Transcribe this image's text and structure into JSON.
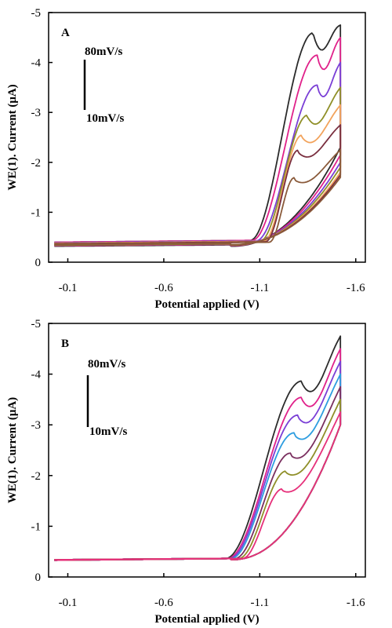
{
  "chart_data": [
    {
      "type": "line",
      "panel_label": "A",
      "xlabel": "Potential applied (V)",
      "ylabel": "WE(1). Current (μA)",
      "xlim": [
        0.0,
        -1.65
      ],
      "ylim": [
        0,
        -5
      ],
      "x_ticks": [
        -0.1,
        -0.6,
        -1.1,
        -1.6
      ],
      "x_tick_labels": [
        "-0.1",
        "-0.6",
        "-1.1",
        "-1.6"
      ],
      "y_ticks": [
        0,
        -1,
        -2,
        -3,
        -4,
        -5
      ],
      "y_tick_labels": [
        "0",
        "-1",
        "-2",
        "-3",
        "-4",
        "-5"
      ],
      "grid": false,
      "legend": "none",
      "annotation": {
        "top": "80mV/s",
        "bottom": "10mV/s"
      },
      "x_start": -0.03,
      "x_end": -1.52,
      "series": [
        {
          "color": "#2b2b2b",
          "onset": -1.05,
          "peak_x": -1.38,
          "peak_y": -4.55,
          "tail_y": -4.75,
          "end_y": -2.3,
          "base_fwd": -0.4,
          "base_ret": -0.32
        },
        {
          "color": "#e0218a",
          "onset": -1.06,
          "peak_x": -1.4,
          "peak_y": -4.1,
          "tail_y": -4.5,
          "end_y": -2.15,
          "base_fwd": -0.4,
          "base_ret": -0.33
        },
        {
          "color": "#7a3fd6",
          "onset": -1.08,
          "peak_x": -1.4,
          "peak_y": -3.5,
          "tail_y": -4.0,
          "end_y": -2.0,
          "base_fwd": -0.39,
          "base_ret": -0.34
        },
        {
          "color": "#8f8f28",
          "onset": -1.1,
          "peak_x": -1.35,
          "peak_y": -2.9,
          "tail_y": -3.5,
          "end_y": -1.9,
          "base_fwd": -0.38,
          "base_ret": -0.34
        },
        {
          "color": "#f2a35c",
          "onset": -1.12,
          "peak_x": -1.32,
          "peak_y": -2.5,
          "tail_y": -3.15,
          "end_y": -1.8,
          "base_fwd": -0.38,
          "base_ret": -0.35
        },
        {
          "color": "#7a2f3f",
          "onset": -1.13,
          "peak_x": -1.3,
          "peak_y": -2.2,
          "tail_y": -2.75,
          "end_y": -1.75,
          "base_fwd": -0.37,
          "base_ret": -0.35
        },
        {
          "color": "#8a5a3a",
          "onset": -1.15,
          "peak_x": -1.28,
          "peak_y": -1.65,
          "tail_y": -2.25,
          "end_y": -1.7,
          "base_fwd": -0.36,
          "base_ret": -0.35
        }
      ]
    },
    {
      "type": "line",
      "panel_label": "B",
      "xlabel": "Potential applied (V)",
      "ylabel": "WE(1). Current (μA)",
      "xlim": [
        0.0,
        -1.65
      ],
      "ylim": [
        0,
        -5
      ],
      "x_ticks": [
        -0.1,
        -0.6,
        -1.1,
        -1.6
      ],
      "x_tick_labels": [
        "-0.1",
        "-0.6",
        "-1.1",
        "-1.6"
      ],
      "y_ticks": [
        0,
        -1,
        -2,
        -3,
        -4,
        -5
      ],
      "y_tick_labels": [
        "0",
        "-1",
        "-2",
        "-3",
        "-4",
        "-5"
      ],
      "grid": false,
      "legend": "none",
      "annotation": {
        "top": "80mV/s",
        "bottom": "10mV/s"
      },
      "x_start": -0.03,
      "x_end": -1.52,
      "series": [
        {
          "color": "#2b2b2b",
          "onset": -0.92,
          "peak_x": -1.32,
          "peak_y": -3.82,
          "tail_y": -4.75,
          "end_y": -3.0,
          "base_fwd": -0.33,
          "base_ret": -0.34
        },
        {
          "color": "#e0218a",
          "onset": -0.93,
          "peak_x": -1.32,
          "peak_y": -3.5,
          "tail_y": -4.5,
          "end_y": -3.0,
          "base_fwd": -0.33,
          "base_ret": -0.34
        },
        {
          "color": "#7a3fd6",
          "onset": -0.94,
          "peak_x": -1.3,
          "peak_y": -3.15,
          "tail_y": -4.25,
          "end_y": -3.0,
          "base_fwd": -0.33,
          "base_ret": -0.34
        },
        {
          "color": "#2d9de0",
          "onset": -0.95,
          "peak_x": -1.28,
          "peak_y": -2.8,
          "tail_y": -4.0,
          "end_y": -3.0,
          "base_fwd": -0.33,
          "base_ret": -0.34
        },
        {
          "color": "#7a2f5f",
          "onset": -0.97,
          "peak_x": -1.26,
          "peak_y": -2.4,
          "tail_y": -3.75,
          "end_y": -3.0,
          "base_fwd": -0.33,
          "base_ret": -0.34
        },
        {
          "color": "#8f8f28",
          "onset": -0.99,
          "peak_x": -1.24,
          "peak_y": -2.05,
          "tail_y": -3.5,
          "end_y": -3.0,
          "base_fwd": -0.33,
          "base_ret": -0.34
        },
        {
          "color": "#e6307a",
          "onset": -1.01,
          "peak_x": -1.22,
          "peak_y": -1.7,
          "tail_y": -3.25,
          "end_y": -3.0,
          "base_fwd": -0.33,
          "base_ret": -0.34
        }
      ]
    }
  ]
}
